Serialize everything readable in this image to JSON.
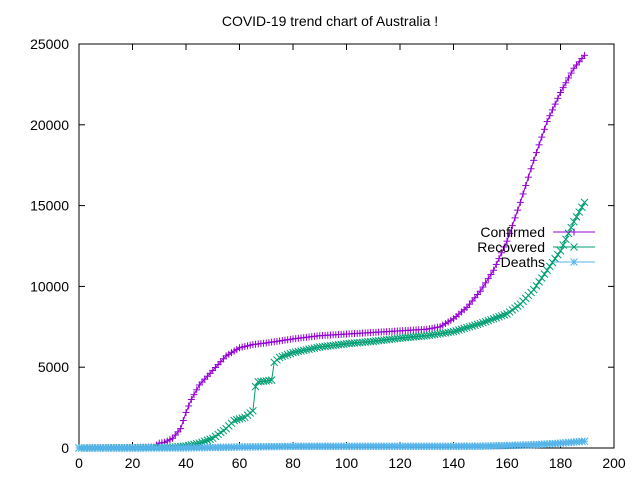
{
  "chart_data": {
    "type": "line",
    "title": "COVID-19 trend chart of Australia !",
    "xlabel": "",
    "ylabel": "",
    "xlim": [
      0,
      200
    ],
    "ylim": [
      0,
      25000
    ],
    "xticks": [
      0,
      20,
      40,
      60,
      80,
      100,
      120,
      140,
      160,
      180,
      200
    ],
    "yticks": [
      0,
      5000,
      10000,
      15000,
      20000,
      25000
    ],
    "grid": false,
    "legend_position": "right",
    "series": [
      {
        "name": "Confirmed",
        "color": "#9400d3",
        "marker": "plus",
        "points": [
          [
            0,
            0
          ],
          [
            10,
            20
          ],
          [
            20,
            30
          ],
          [
            28,
            60
          ],
          [
            30,
            300
          ],
          [
            32,
            350
          ],
          [
            35,
            600
          ],
          [
            38,
            1200
          ],
          [
            40,
            2200
          ],
          [
            42,
            3000
          ],
          [
            45,
            3900
          ],
          [
            50,
            4800
          ],
          [
            55,
            5700
          ],
          [
            60,
            6200
          ],
          [
            65,
            6400
          ],
          [
            70,
            6500
          ],
          [
            80,
            6750
          ],
          [
            90,
            6950
          ],
          [
            100,
            7050
          ],
          [
            110,
            7150
          ],
          [
            120,
            7250
          ],
          [
            130,
            7350
          ],
          [
            135,
            7500
          ],
          [
            140,
            8000
          ],
          [
            145,
            8700
          ],
          [
            150,
            9700
          ],
          [
            155,
            11000
          ],
          [
            160,
            12800
          ],
          [
            165,
            15200
          ],
          [
            170,
            17800
          ],
          [
            175,
            20200
          ],
          [
            180,
            22000
          ],
          [
            185,
            23500
          ],
          [
            189,
            24300
          ]
        ]
      },
      {
        "name": "Recovered",
        "color": "#009e73",
        "marker": "cross",
        "points": [
          [
            0,
            0
          ],
          [
            10,
            5
          ],
          [
            20,
            10
          ],
          [
            30,
            25
          ],
          [
            35,
            50
          ],
          [
            40,
            120
          ],
          [
            45,
            300
          ],
          [
            50,
            600
          ],
          [
            55,
            1200
          ],
          [
            58,
            1700
          ],
          [
            62,
            1900
          ],
          [
            65,
            2300
          ],
          [
            66,
            3800
          ],
          [
            67,
            4100
          ],
          [
            70,
            4150
          ],
          [
            72,
            4200
          ],
          [
            73,
            5300
          ],
          [
            75,
            5600
          ],
          [
            80,
            5900
          ],
          [
            90,
            6250
          ],
          [
            100,
            6450
          ],
          [
            110,
            6600
          ],
          [
            120,
            6800
          ],
          [
            130,
            6950
          ],
          [
            140,
            7200
          ],
          [
            150,
            7700
          ],
          [
            160,
            8300
          ],
          [
            165,
            8900
          ],
          [
            170,
            9800
          ],
          [
            175,
            11000
          ],
          [
            180,
            12200
          ],
          [
            185,
            14000
          ],
          [
            189,
            15200
          ]
        ]
      },
      {
        "name": "Deaths",
        "color": "#56b4e9",
        "marker": "star",
        "points": [
          [
            0,
            0
          ],
          [
            20,
            0
          ],
          [
            40,
            10
          ],
          [
            50,
            30
          ],
          [
            60,
            60
          ],
          [
            70,
            80
          ],
          [
            80,
            100
          ],
          [
            100,
            104
          ],
          [
            120,
            104
          ],
          [
            140,
            104
          ],
          [
            150,
            110
          ],
          [
            160,
            150
          ],
          [
            170,
            200
          ],
          [
            180,
            300
          ],
          [
            189,
            420
          ]
        ]
      }
    ]
  }
}
